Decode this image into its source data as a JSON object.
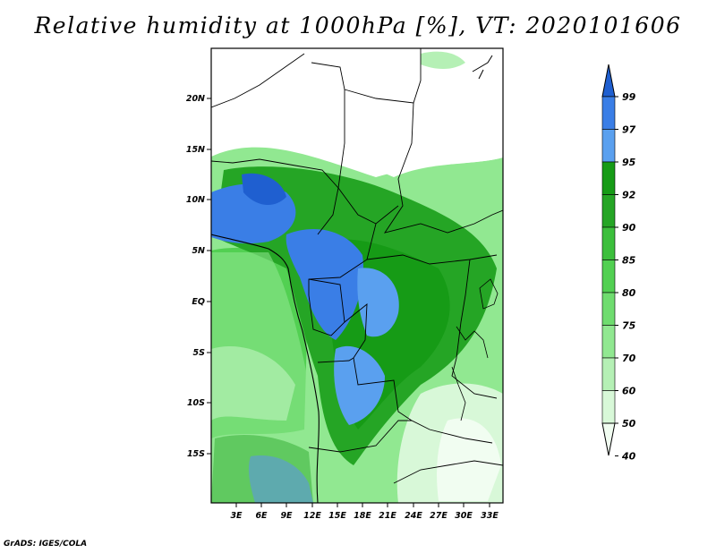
{
  "title": "Relative humidity at 1000hPa [%], VT: 2020101606",
  "footer": "GrADS: IGES/COLA",
  "map": {
    "lon_labels": [
      "3E",
      "6E",
      "9E",
      "12E",
      "15E",
      "18E",
      "21E",
      "24E",
      "27E",
      "30E",
      "33E"
    ],
    "lat_labels": [
      "20N",
      "15N",
      "10N",
      "5N",
      "EQ",
      "5S",
      "10S",
      "15S"
    ]
  },
  "colorbar": {
    "labels": [
      "99",
      "97",
      "95",
      "92",
      "90",
      "85",
      "80",
      "75",
      "70",
      "60",
      "50",
      "40"
    ],
    "colors": [
      "#1f5fd0",
      "#3a7ee6",
      "#5aa0ef",
      "#169b16",
      "#25a525",
      "#3cbf3c",
      "#52d052",
      "#6fdc6f",
      "#91e891",
      "#b5f0b5",
      "#d8f8d8",
      "#f1fdf1"
    ]
  }
}
